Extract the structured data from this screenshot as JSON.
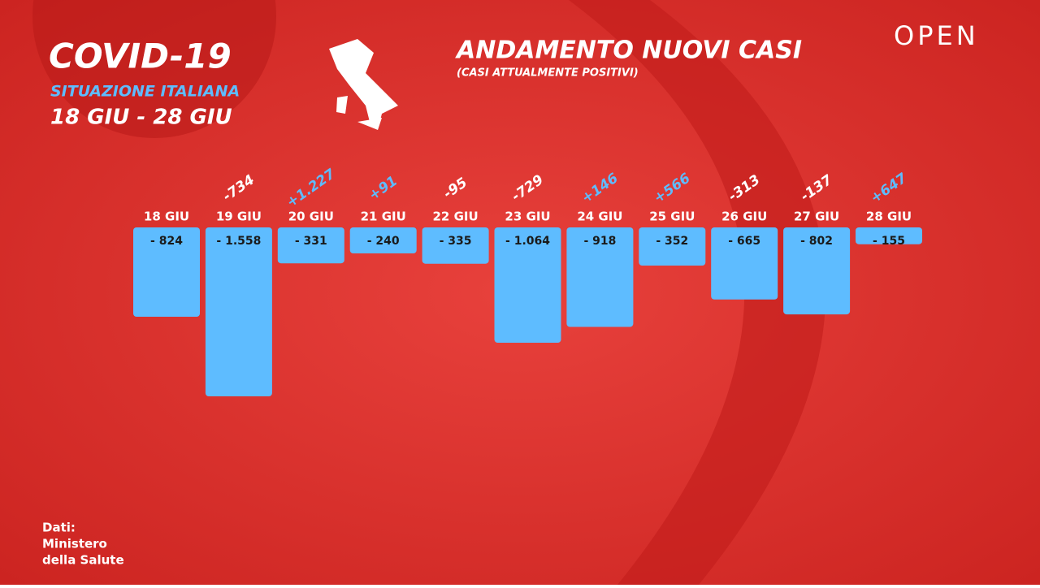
{
  "header": {
    "title": "COVID-19",
    "subtitle": "SITUAZIONE ITALIANA",
    "period": "18 GIU - 28 GIU"
  },
  "brand": "OPEN",
  "source": [
    "Dati:",
    "Ministero",
    "della Salute"
  ],
  "chart_data": {
    "type": "bar",
    "title": "ANDAMENTO NUOVI CASI",
    "subtitle": "(CASI ATTUALMENTE POSITIVI)",
    "categories": [
      "18 GIU",
      "19 GIU",
      "20 GIU",
      "21 GIU",
      "22 GIU",
      "23 GIU",
      "24 GIU",
      "25 GIU",
      "26 GIU",
      "27 GIU",
      "28 GIU"
    ],
    "values": [
      -824,
      -1558,
      -331,
      -240,
      -335,
      -1064,
      -918,
      -352,
      -665,
      -802,
      -155
    ],
    "value_labels": [
      "- 824",
      "- 1.558",
      "- 331",
      "- 240",
      "- 335",
      "- 1.064",
      "- 918",
      "- 352",
      "- 665",
      "- 802",
      "- 155"
    ],
    "color": "#5ebcff",
    "changes": {
      "values": [
        null,
        -734,
        1227,
        91,
        -95,
        -729,
        146,
        566,
        -313,
        -137,
        647
      ],
      "value_labels": [
        null,
        "-734",
        "+1.227",
        "+91",
        "-95",
        "-729",
        "+146",
        "+566",
        "-313",
        "-137",
        "+647"
      ]
    }
  }
}
